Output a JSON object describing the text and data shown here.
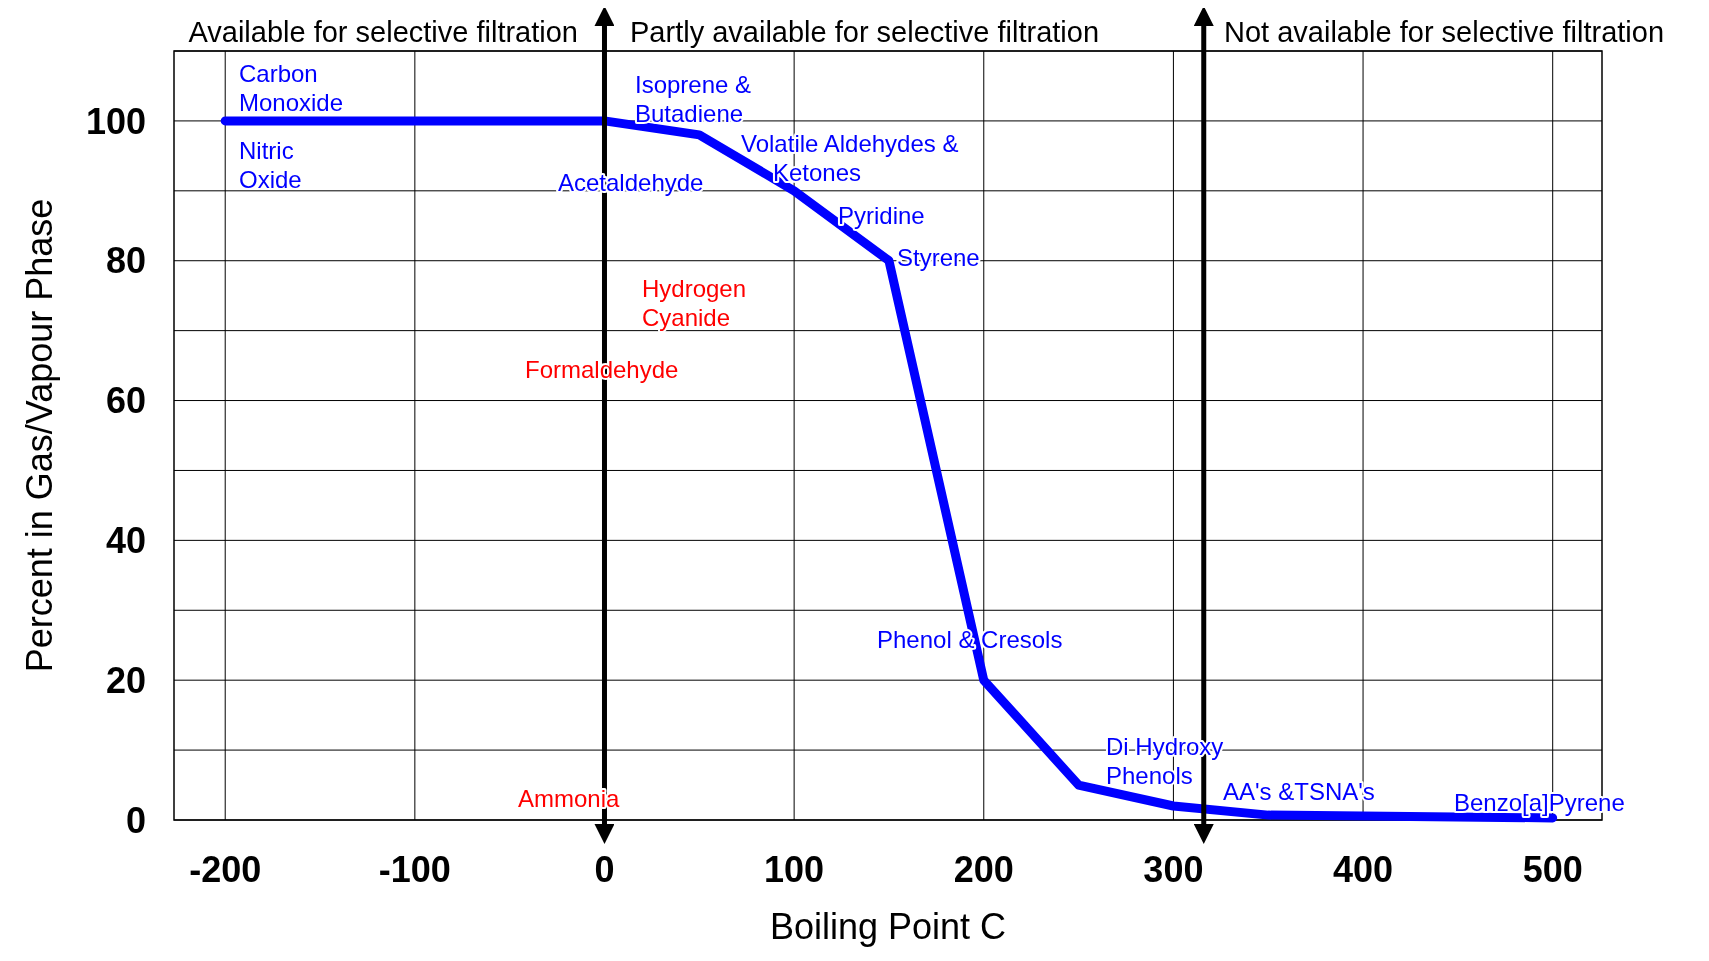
{
  "chart_data": {
    "type": "line",
    "xlabel": "Boiling Point C",
    "ylabel": "Percent in Gas/Vapour Phase",
    "x": [
      -200,
      0,
      50,
      100,
      150,
      200,
      250,
      300,
      350,
      500
    ],
    "series": [
      {
        "color": "#0000ff",
        "values": [
          100,
          100,
          98,
          90,
          80,
          20,
          5,
          2,
          0.7,
          0.3
        ]
      }
    ],
    "xlim": [
      -227,
      526
    ],
    "xticks": [
      -200,
      -100,
      0,
      100,
      200,
      300,
      400,
      500
    ],
    "ylim": [
      0,
      110
    ],
    "yticks": [
      0,
      {
        "value": 10,
        "label": null
      },
      20,
      {
        "value": 30,
        "label": null
      },
      40,
      {
        "value": 50,
        "label": null
      },
      60,
      {
        "value": 70,
        "label": null
      },
      80,
      {
        "value": 90,
        "label": null
      },
      100,
      {
        "value": 110,
        "label": null
      }
    ],
    "grid": true,
    "marker": "none",
    "line_style": "solid",
    "ref_lines": [
      {
        "axis": "x",
        "value": 0,
        "color": "#000000"
      },
      {
        "axis": "x",
        "value": 316,
        "color": "#000000"
      }
    ],
    "annotations": [
      "Available for selective filtration",
      "Partly available for selective filtration",
      "Not available for selective filtration",
      "Carbon\nMonoxide",
      "Nitric\nOxide",
      "Isoprene &\nButadiene",
      "Acetaldehyde",
      "Volatile Aldehydes &\nKetones",
      "Pyridine",
      "Styrene",
      "Hydrogen\nCyanide",
      "Formaldehyde",
      "Phenol & Cresols",
      "Di Hydroxy\nPhenols",
      "AA's &TSNA's",
      "Benzo[a]Pyrene",
      "Ammonia"
    ]
  }
}
